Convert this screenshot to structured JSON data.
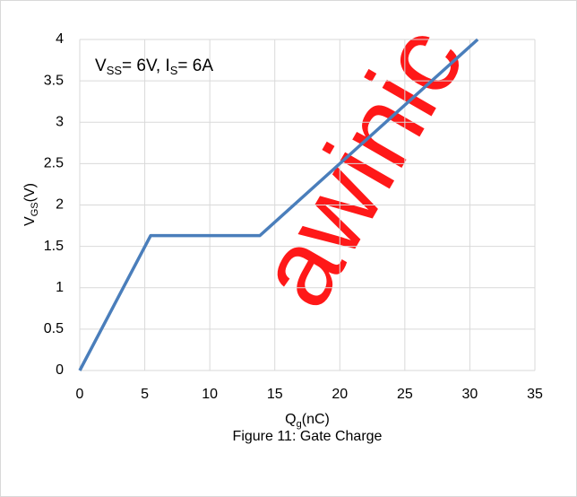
{
  "chart_data": {
    "type": "line",
    "x": [
      0,
      5.45,
      13.85,
      30.6
    ],
    "series": [
      {
        "color": "#4a7ebb",
        "values": [
          0,
          1.63,
          1.63,
          4
        ]
      }
    ],
    "xlim": [
      0,
      35
    ],
    "xticks": [
      0,
      5,
      10,
      15,
      20,
      25,
      30,
      35
    ],
    "ylim": [
      0,
      4
    ],
    "yticks": [
      0,
      {
        "value": 0.5,
        "label": "0.5"
      },
      1,
      {
        "value": 1.5,
        "label": "1.5"
      },
      2,
      {
        "value": 2.5,
        "label": "2.5"
      },
      3,
      {
        "value": 3.5,
        "label": "3.5"
      },
      4
    ],
    "grid": true,
    "annotation": [
      "V",
      "SS",
      "= 6V, I",
      "S",
      "= 6A"
    ],
    "ylabel": [
      "V",
      "GS",
      "(V)"
    ],
    "xlabel": [
      "Q",
      "g",
      "(nC)"
    ],
    "caption": "Figure 11: Gate Charge",
    "watermark": "awinic"
  }
}
